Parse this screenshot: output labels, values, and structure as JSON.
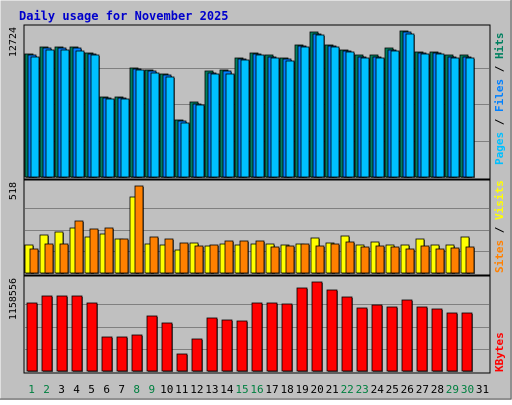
{
  "chart_data": {
    "type": "bar",
    "title": "Daily usage for November 2025",
    "colors": {
      "background": "#c0c0c0",
      "title": "#0000cc",
      "hits": "#008060",
      "files": "#0080ff",
      "pages": "#00c0ff",
      "visits": "#ffff00",
      "sites": "#ff8000",
      "kbytes": "#ff0000",
      "weekend_label": "#008040",
      "weekday_label": "#000000"
    },
    "categories": [
      "1",
      "2",
      "3",
      "4",
      "5",
      "6",
      "7",
      "8",
      "9",
      "10",
      "11",
      "12",
      "13",
      "14",
      "15",
      "16",
      "17",
      "18",
      "19",
      "20",
      "21",
      "22",
      "23",
      "24",
      "25",
      "26",
      "27",
      "28",
      "29",
      "30",
      "31"
    ],
    "weekend_days": [
      "1",
      "2",
      "8",
      "9",
      "15",
      "16",
      "22",
      "23",
      "29",
      "30"
    ],
    "panels": [
      {
        "id": "traffic",
        "ymax_label": "12724",
        "ymax": 12724,
        "legend": [
          "Pages",
          "Files",
          "Hits"
        ],
        "legend_separator": " / ",
        "series": [
          {
            "name": "Hits",
            "values": [
              10700,
              11300,
              11300,
              11300,
              10800,
              7000,
              7000,
              9500,
              9300,
              9000,
              5000,
              6500,
              9200,
              9300,
              10400,
              10800,
              10600,
              10400,
              11500,
              12600,
              11500,
              11100,
              10600,
              10600,
              11200,
              12700,
              10900,
              10900,
              10600,
              10600,
              0
            ]
          },
          {
            "name": "Files",
            "values": [
              10600,
              11200,
              11200,
              11200,
              10700,
              6900,
              6900,
              9400,
              9200,
              8900,
              4900,
              6400,
              9100,
              9200,
              10300,
              10700,
              10500,
              10300,
              11400,
              12500,
              11400,
              11000,
              10500,
              10500,
              11100,
              12600,
              10800,
              10800,
              10500,
              10500,
              0
            ]
          },
          {
            "name": "Pages",
            "values": [
              10500,
              11100,
              11100,
              11000,
              10600,
              6800,
              6800,
              9300,
              9100,
              8700,
              4700,
              6300,
              9000,
              9000,
              10200,
              10600,
              10400,
              10100,
              11300,
              12400,
              11300,
              10900,
              10400,
              10400,
              11000,
              12500,
              10700,
              10700,
              10400,
              10400,
              0
            ]
          }
        ]
      },
      {
        "id": "visitors",
        "ymax_label": "518",
        "ymax": 518,
        "legend": [
          "Sites",
          "Visits"
        ],
        "legend_separator": " / ",
        "series": [
          {
            "name": "Visits",
            "values": [
              165,
              225,
              245,
              270,
              215,
              230,
              205,
              450,
              170,
              165,
              135,
              180,
              160,
              170,
              165,
              175,
              170,
              165,
              175,
              210,
              180,
              220,
              165,
              185,
              165,
              165,
              200,
              165,
              165,
              215,
              0
            ]
          },
          {
            "name": "Sites",
            "values": [
              145,
              170,
              175,
              310,
              260,
              265,
              205,
              518,
              215,
              200,
              180,
              160,
              165,
              190,
              190,
              190,
              155,
              160,
              170,
              160,
              175,
              185,
              155,
              160,
              155,
              145,
              160,
              145,
              150,
              155,
              0
            ]
          }
        ]
      },
      {
        "id": "kbytes",
        "ymax_label": "1158556",
        "ymax": 1158556,
        "legend": [
          "KBytes"
        ],
        "legend_separator": "",
        "series": [
          {
            "name": "KBytes",
            "values": [
              880000,
              980000,
              980000,
              980000,
              880000,
              440000,
              440000,
              470000,
              720000,
              620000,
              220000,
              420000,
              690000,
              660000,
              650000,
              880000,
              890000,
              870000,
              1080000,
              1160000,
              1060000,
              960000,
              820000,
              860000,
              830000,
              930000,
              830000,
              810000,
              760000,
              750000,
              0
            ]
          }
        ]
      }
    ]
  }
}
